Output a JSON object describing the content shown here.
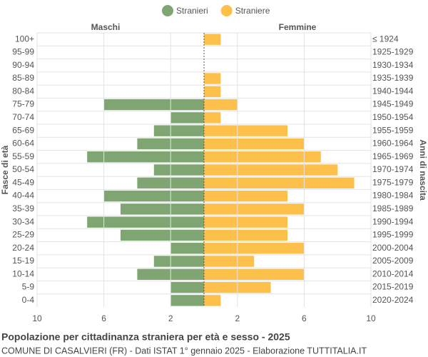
{
  "chart_data": {
    "type": "pyramid",
    "title": "Popolazione per cittadinanza straniera per età e sesso - 2025",
    "subtitle": "COMUNE DI CASALVIERI (FR) - Dati ISTAT 1° gennaio 2025 - Elaborazione TUTTITALIA.IT",
    "left_label": "Maschi",
    "right_label": "Femmine",
    "y_label": "Fasce di età",
    "y2_label": "Anni di nascita",
    "categories": [
      "100+",
      "95-99",
      "90-94",
      "85-89",
      "80-84",
      "75-79",
      "70-74",
      "65-69",
      "60-64",
      "55-59",
      "50-54",
      "45-49",
      "40-44",
      "35-39",
      "30-34",
      "25-29",
      "20-24",
      "15-19",
      "10-14",
      "5-9",
      "0-4"
    ],
    "birth_years": [
      "≤ 1924",
      "1925-1929",
      "1930-1934",
      "1935-1939",
      "1940-1944",
      "1945-1949",
      "1950-1954",
      "1955-1959",
      "1960-1964",
      "1965-1969",
      "1970-1974",
      "1975-1979",
      "1980-1984",
      "1985-1989",
      "1990-1994",
      "1995-1999",
      "2000-2004",
      "2005-2009",
      "2010-2014",
      "2015-2019",
      "2020-2024"
    ],
    "series": [
      {
        "name": "Stranieri",
        "color": "#7fa572",
        "side": "left",
        "values": [
          0,
          0,
          0,
          0,
          0,
          6,
          2,
          3,
          4,
          7,
          3,
          4,
          6,
          5,
          7,
          5,
          2,
          3,
          4,
          2,
          2
        ]
      },
      {
        "name": "Straniere",
        "color": "#fdc04a",
        "side": "right",
        "values": [
          1,
          0,
          0,
          1,
          1,
          2,
          1,
          5,
          6,
          7,
          8,
          9,
          5,
          6,
          5,
          5,
          6,
          3,
          6,
          4,
          1
        ]
      }
    ],
    "xlim": [
      -10,
      10
    ],
    "xticks": [
      {
        "value": -10,
        "label": "10"
      },
      {
        "value": -6,
        "label": "6"
      },
      {
        "value": -2,
        "label": "2"
      },
      2,
      6,
      10
    ],
    "grid": true
  }
}
